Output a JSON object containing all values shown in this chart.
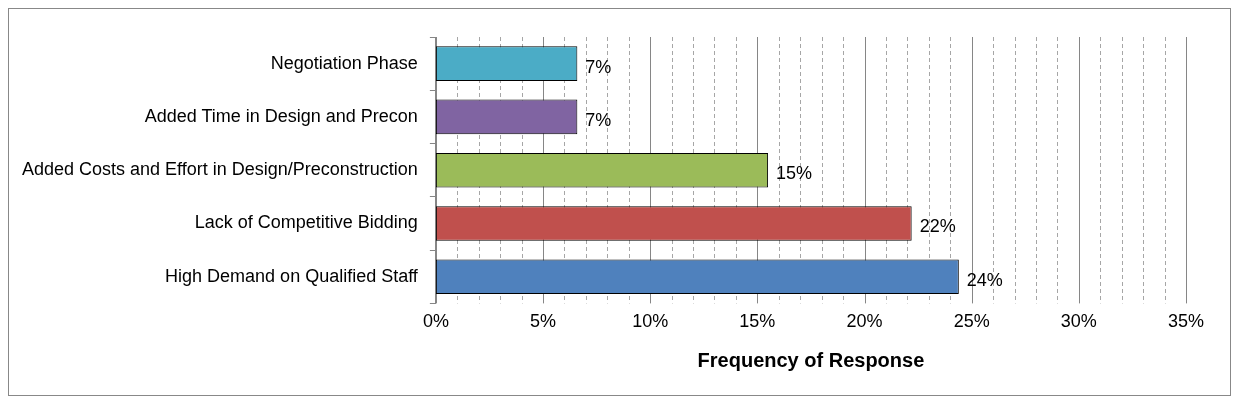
{
  "chart_data": {
    "type": "bar",
    "orientation": "horizontal",
    "xlabel": "Frequency of Response",
    "categories": [
      "Negotiation Phase",
      "Added Time in Design and Precon",
      "Added Costs and Effort in Design/Preconstruction",
      "Lack of Competitive Bidding",
      "High Demand on Qualified Staff"
    ],
    "values": [
      6.6,
      6.6,
      15.5,
      22.2,
      24.4
    ],
    "value_labels": [
      "7%",
      "7%",
      "15%",
      "22%",
      "24%"
    ],
    "colors": [
      "#4bacc6",
      "#8064a2",
      "#9bbb59",
      "#c0504d",
      "#4f81bd"
    ],
    "xlim": [
      0,
      35
    ],
    "xticks": [
      {
        "value": 0,
        "label": "0%"
      },
      {
        "value": 1,
        "label": null
      },
      {
        "value": 2,
        "label": null
      },
      {
        "value": 3,
        "label": null
      },
      {
        "value": 4,
        "label": null
      },
      {
        "value": 5,
        "label": "5%"
      },
      {
        "value": 6,
        "label": null
      },
      {
        "value": 7,
        "label": null
      },
      {
        "value": 8,
        "label": null
      },
      {
        "value": 9,
        "label": null
      },
      {
        "value": 10,
        "label": "10%"
      },
      {
        "value": 11,
        "label": null
      },
      {
        "value": 12,
        "label": null
      },
      {
        "value": 13,
        "label": null
      },
      {
        "value": 14,
        "label": null
      },
      {
        "value": 15,
        "label": "15%"
      },
      {
        "value": 16,
        "label": null
      },
      {
        "value": 17,
        "label": null
      },
      {
        "value": 18,
        "label": null
      },
      {
        "value": 19,
        "label": null
      },
      {
        "value": 20,
        "label": "20%"
      },
      {
        "value": 21,
        "label": null
      },
      {
        "value": 22,
        "label": null
      },
      {
        "value": 23,
        "label": null
      },
      {
        "value": 24,
        "label": null
      },
      {
        "value": 25,
        "label": "25%"
      },
      {
        "value": 26,
        "label": null
      },
      {
        "value": 27,
        "label": null
      },
      {
        "value": 28,
        "label": null
      },
      {
        "value": 29,
        "label": null
      },
      {
        "value": 30,
        "label": "30%"
      },
      {
        "value": 31,
        "label": null
      },
      {
        "value": 32,
        "label": null
      },
      {
        "value": 33,
        "label": null
      },
      {
        "value": 34,
        "label": null
      },
      {
        "value": 35,
        "label": "35%"
      }
    ],
    "grid": "x"
  }
}
